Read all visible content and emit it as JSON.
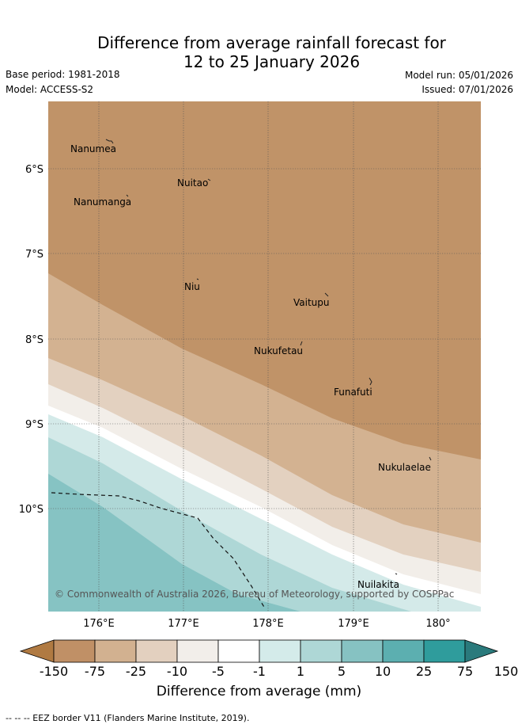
{
  "title": {
    "line1": "Difference from average rainfall forecast for",
    "line2": "12 to 25 January 2026"
  },
  "meta": {
    "base_period": "Base period: 1981-2018",
    "model": "Model: ACCESS-S2",
    "model_run": "Model run: 05/01/2026",
    "issued": "Issued: 07/01/2026"
  },
  "map": {
    "lon_labels": [
      "176°E",
      "177°E",
      "178°E",
      "179°E",
      "180°"
    ],
    "lat_labels": [
      "6°S",
      "7°S",
      "8°S",
      "9°S",
      "10°S"
    ],
    "places": [
      "Nanumea",
      "Nuitao",
      "Nanumanga",
      "Niu",
      "Vaitupu",
      "Nukufetau",
      "Funafuti",
      "Nukulaelae",
      "Nuilakita"
    ],
    "copyright": "© Commonwealth of Australia 2026, Bureau of Meteorology, supported by COSPPac"
  },
  "colorbar": {
    "tick_labels": [
      "-150",
      "-75",
      "-25",
      "-10",
      "-5",
      "-1",
      "1",
      "5",
      "10",
      "25",
      "75",
      "150"
    ],
    "colors": [
      "#b07a42",
      "#c09066",
      "#d2b190",
      "#e3d0bf",
      "#f2eeea",
      "#ffffff",
      "#d4ebea",
      "#aed7d6",
      "#86c2c2",
      "#5cafb0",
      "#2f9c9c",
      "#2a7a7c"
    ],
    "xlabel": "Difference from average (mm)"
  },
  "footer": "--  --  -- EEZ border V11 (Flanders Marine Institute, 2019)."
}
